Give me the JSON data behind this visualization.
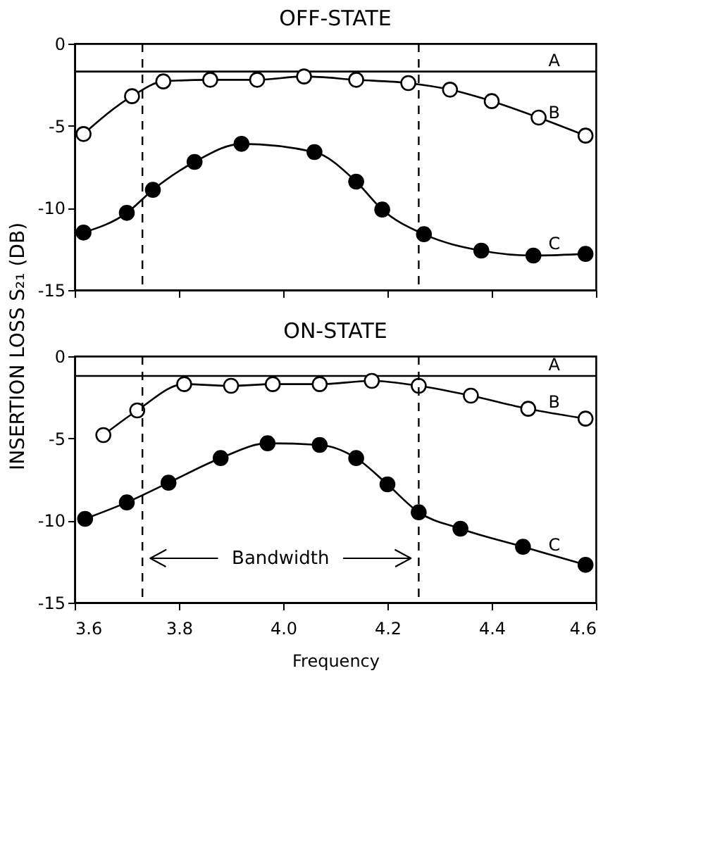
{
  "chart_data": [
    {
      "type": "line",
      "title": "OFF-STATE",
      "ylabel": "INSERTION LOSS S₂₁ (DB)",
      "xlim": [
        3.6,
        4.6
      ],
      "xticks": [
        3.6,
        3.8,
        4.0,
        4.2,
        4.4,
        4.6
      ],
      "ylim": [
        -15,
        0
      ],
      "yticks": [
        0,
        -5,
        -10,
        -15
      ],
      "tick_labels": "y",
      "grid": false,
      "line_style": "solid",
      "ref_lines": [
        {
          "axis": "x",
          "value": 3.73,
          "line_style": "dashed",
          "color": "#000000"
        },
        {
          "axis": "x",
          "value": 4.26,
          "line_style": "dashed",
          "color": "#000000"
        }
      ],
      "series": [
        {
          "name": "A",
          "color": "#000000",
          "marker": "none",
          "x": [
            3.6,
            4.6
          ],
          "values": [
            -1.7,
            -1.7
          ]
        },
        {
          "name": "B",
          "color": "#000000",
          "marker": "circle",
          "x": [
            3.617,
            3.71,
            3.77,
            3.86,
            3.95,
            4.04,
            4.14,
            4.24,
            4.32,
            4.4,
            4.49,
            4.58
          ],
          "values": [
            -5.5,
            -3.2,
            -2.3,
            -2.2,
            -2.2,
            -2.0,
            -2.2,
            -2.4,
            -2.8,
            -3.5,
            -4.5,
            -5.6
          ]
        },
        {
          "name": "C",
          "color": "#000000",
          "marker": "circle",
          "x": [
            3.617,
            3.7,
            3.75,
            3.83,
            3.92,
            4.06,
            4.14,
            4.19,
            4.27,
            4.38,
            4.48,
            4.58
          ],
          "values": [
            -11.5,
            -10.3,
            -8.9,
            -7.2,
            -6.1,
            -6.6,
            -8.4,
            -10.1,
            -11.6,
            -12.6,
            -12.9,
            -12.8
          ]
        }
      ]
    },
    {
      "type": "line",
      "title": "ON-STATE",
      "xlabel": "Frequency",
      "xlim": [
        3.6,
        4.6
      ],
      "xticks": [
        3.6,
        3.8,
        {
          "value": 4,
          "label": "4.0"
        },
        4.2,
        4.4,
        4.6
      ],
      "ylim": [
        -15,
        0
      ],
      "yticks": [
        0,
        -5,
        -10,
        -15
      ],
      "grid": false,
      "line_style": "solid",
      "ref_lines": [
        {
          "axis": "x",
          "value": 3.73,
          "line_style": "dashed",
          "color": "#000000"
        },
        {
          "axis": "x",
          "value": 4.26,
          "line_style": "dashed",
          "color": "#000000"
        }
      ],
      "annotations": [
        "Bandwidth"
      ],
      "series": [
        {
          "name": "A",
          "color": "#000000",
          "marker": "none",
          "x": [
            3.6,
            4.6
          ],
          "values": [
            -1.2,
            -1.2
          ]
        },
        {
          "name": "B",
          "color": "#000000",
          "marker": "circle",
          "x": [
            3.655,
            3.72,
            3.81,
            3.9,
            3.98,
            4.07,
            4.17,
            4.26,
            4.36,
            4.47,
            4.58
          ],
          "values": [
            -4.8,
            -3.3,
            -1.7,
            -1.8,
            -1.7,
            -1.7,
            -1.5,
            -1.8,
            -2.4,
            -3.2,
            -3.8
          ]
        },
        {
          "name": "C",
          "color": "#000000",
          "marker": "circle",
          "x": [
            3.62,
            3.7,
            3.78,
            3.88,
            3.97,
            4.07,
            4.14,
            4.2,
            4.26,
            4.34,
            4.46,
            4.58
          ],
          "values": [
            -9.9,
            -8.9,
            -7.7,
            -6.2,
            -5.3,
            -5.4,
            -6.2,
            -7.8,
            -9.5,
            -10.5,
            -11.6,
            -12.7
          ]
        }
      ]
    }
  ]
}
